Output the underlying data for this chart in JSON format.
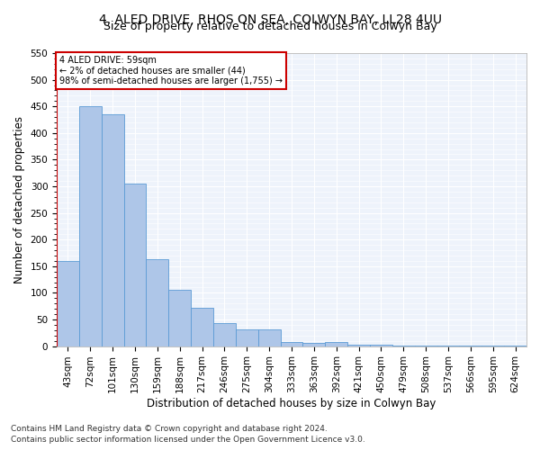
{
  "title1": "4, ALED DRIVE, RHOS ON SEA, COLWYN BAY, LL28 4UU",
  "title2": "Size of property relative to detached houses in Colwyn Bay",
  "xlabel": "Distribution of detached houses by size in Colwyn Bay",
  "ylabel": "Number of detached properties",
  "footnote1": "Contains HM Land Registry data © Crown copyright and database right 2024.",
  "footnote2": "Contains public sector information licensed under the Open Government Licence v3.0.",
  "annotation_line1": "4 ALED DRIVE: 59sqm",
  "annotation_line2": "← 2% of detached houses are smaller (44)",
  "annotation_line3": "98% of semi-detached houses are larger (1,755) →",
  "bar_labels": [
    "43sqm",
    "72sqm",
    "101sqm",
    "130sqm",
    "159sqm",
    "188sqm",
    "217sqm",
    "246sqm",
    "275sqm",
    "304sqm",
    "333sqm",
    "363sqm",
    "392sqm",
    "421sqm",
    "450sqm",
    "479sqm",
    "508sqm",
    "537sqm",
    "566sqm",
    "595sqm",
    "624sqm"
  ],
  "bar_values": [
    160,
    450,
    435,
    305,
    163,
    105,
    72,
    43,
    32,
    32,
    8,
    6,
    8,
    2,
    2,
    1,
    1,
    1,
    1,
    1,
    1
  ],
  "bar_color": "#aec6e8",
  "bar_edge_color": "#5b9bd5",
  "marker_color": "#cc0000",
  "ylim": [
    0,
    550
  ],
  "yticks": [
    0,
    50,
    100,
    150,
    200,
    250,
    300,
    350,
    400,
    450,
    500,
    550
  ],
  "bg_color": "#eef3fb",
  "annotation_box_color": "#cc0000",
  "title_fontsize": 10,
  "subtitle_fontsize": 9,
  "axis_label_fontsize": 8.5,
  "tick_fontsize": 7.5,
  "footnote_fontsize": 6.5
}
